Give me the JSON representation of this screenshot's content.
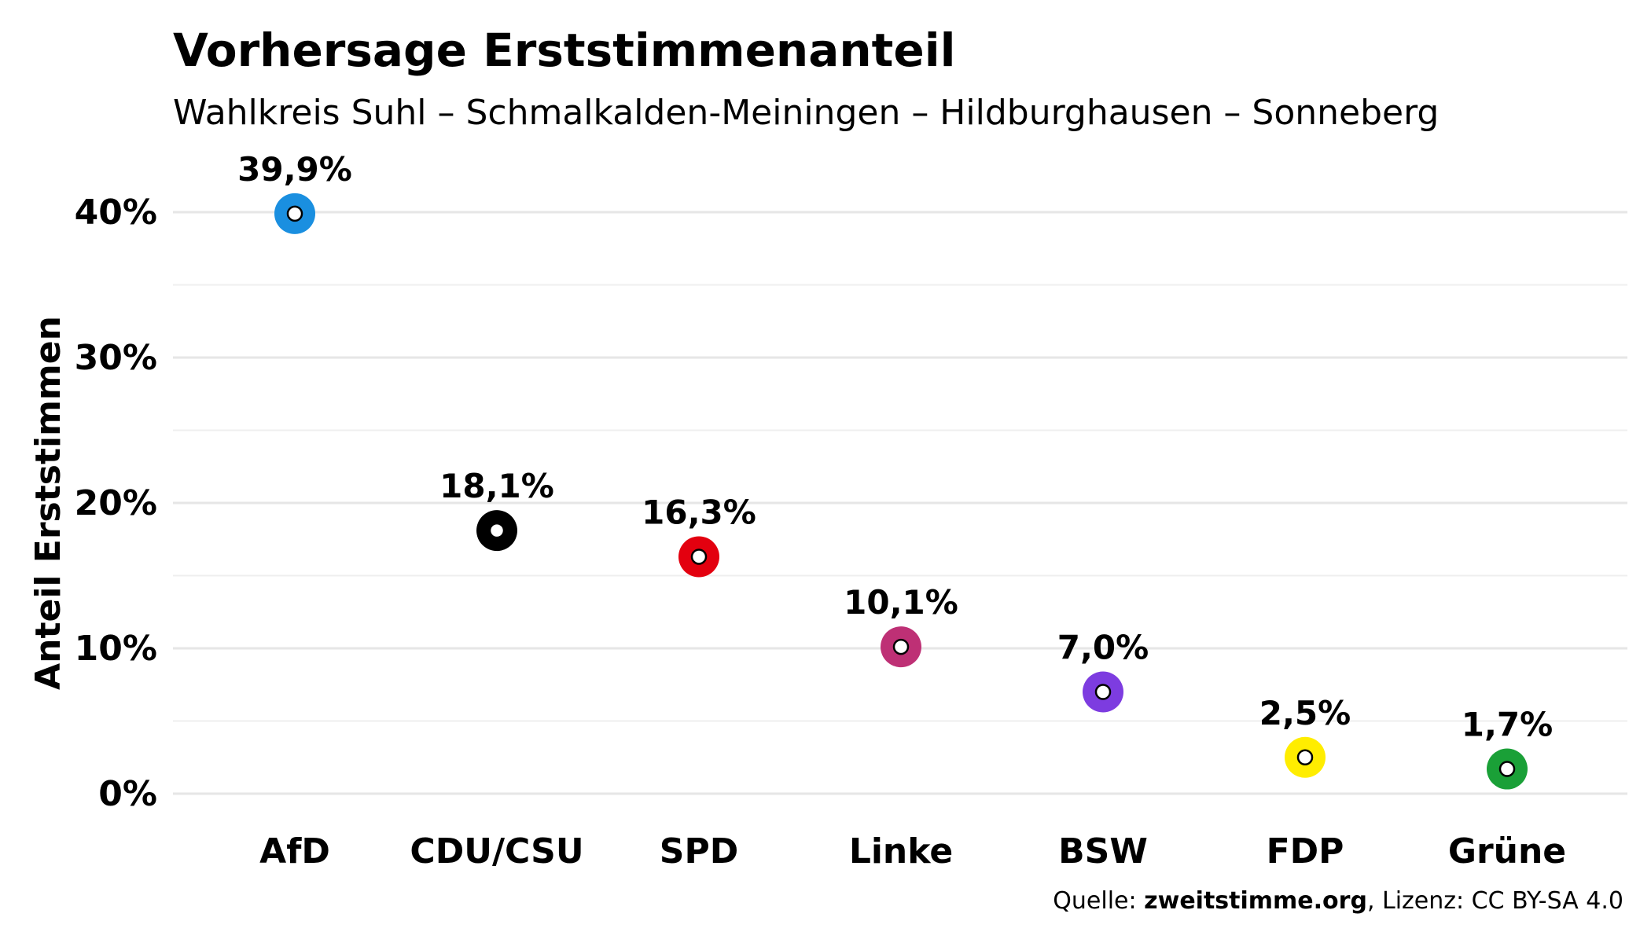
{
  "chart_data": {
    "type": "scatter",
    "title": "Vorhersage Erststimmenanteil",
    "subtitle": "Wahlkreis Suhl – Schmalkalden-Meiningen – Hildburghausen – Sonneberg",
    "ylabel": "Anteil Erststimmen",
    "xlabel": "",
    "ylim": [
      0,
      40
    ],
    "yticks": [
      0,
      10,
      20,
      30,
      40
    ],
    "ytick_labels": [
      "0%",
      "10%",
      "20%",
      "30%",
      "40%"
    ],
    "grid": true,
    "legend": "none",
    "categories": [
      "AfD",
      "CDU/CSU",
      "SPD",
      "Linke",
      "BSW",
      "FDP",
      "Grüne"
    ],
    "values": [
      39.9,
      18.1,
      16.3,
      10.1,
      7.0,
      2.5,
      1.7
    ],
    "value_labels": [
      "39,9%",
      "18,1%",
      "16,3%",
      "10,1%",
      "7,0%",
      "2,5%",
      "1,7%"
    ],
    "colors": [
      "#1a8fe0",
      "#000000",
      "#e3000f",
      "#be3075",
      "#7d3ce0",
      "#ffed00",
      "#1aa037"
    ],
    "caption": {
      "prefix": "Quelle: ",
      "source": "zweitstimme.org",
      "suffix": ", Lizenz: CC BY-SA 4.0"
    }
  }
}
